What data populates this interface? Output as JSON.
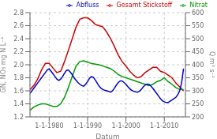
{
  "chart_data": {
    "type": "line",
    "title": "",
    "xlabel": "Datum",
    "ylabel": "GN, NO₃ mg N L⁻¹",
    "y2label": "Q m³ s⁻¹",
    "xlim": [
      1975.0,
      2015.5
    ],
    "xticks": [
      {
        "value": 1980,
        "label": "1-1-1980"
      },
      {
        "value": 1990,
        "label": "1-1-1990"
      },
      {
        "value": 2000,
        "label": "1-1-2000"
      },
      {
        "value": 2010,
        "label": "1-1-2010"
      }
    ],
    "ylim": [
      1.2,
      2.8
    ],
    "yticks": [
      1.2,
      1.4,
      1.6,
      1.8,
      {
        "value": 2.0,
        "label": "2.0"
      },
      2.2,
      2.4,
      2.6,
      2.8
    ],
    "y2lim": [
      200,
      600
    ],
    "y2ticks": [
      200,
      250,
      300,
      350,
      400,
      450,
      500,
      550,
      600
    ],
    "grid": true,
    "legend": "upper right",
    "series": [
      {
        "name": "Gesamt Stickstoff",
        "color": "#cc0000",
        "x": [
          1975,
          1976,
          1977,
          1978,
          1979,
          1980,
          1981,
          1982,
          1983,
          1984,
          1985,
          1986,
          1987,
          1988,
          1989,
          1990,
          1991,
          1992,
          1993,
          1994,
          1995,
          1996,
          1997,
          1998,
          1999,
          2000,
          2001,
          2002,
          2003,
          2004,
          2005,
          2006,
          2007,
          2008,
          2009,
          2010,
          2011,
          2012,
          2013,
          2014,
          2015
        ],
        "values": [
          1.62,
          1.68,
          1.78,
          1.92,
          2.02,
          2.02,
          1.95,
          1.88,
          1.9,
          2.05,
          2.22,
          2.4,
          2.58,
          2.7,
          2.72,
          2.72,
          2.68,
          2.62,
          2.6,
          2.58,
          2.5,
          2.4,
          2.28,
          2.15,
          2.05,
          1.98,
          1.9,
          1.84,
          1.8,
          1.82,
          1.88,
          1.92,
          1.96,
          1.96,
          1.9,
          1.88,
          1.84,
          1.8,
          1.72,
          1.66,
          1.6
        ]
      },
      {
        "name": "Nitrat",
        "color": "#009900",
        "x": [
          1975,
          1976,
          1977,
          1978,
          1979,
          1980,
          1981,
          1982,
          1983,
          1984,
          1985,
          1986,
          1987,
          1988,
          1989,
          1990,
          1991,
          1992,
          1993,
          1994,
          1995,
          1996,
          1997,
          1998,
          1999,
          2000,
          2001,
          2002,
          2003,
          2004,
          2005,
          2006,
          2007,
          2008,
          2009,
          2010,
          2011,
          2012,
          2013,
          2014,
          2015
        ],
        "values": [
          1.3,
          1.35,
          1.38,
          1.4,
          1.4,
          1.38,
          1.36,
          1.36,
          1.4,
          1.5,
          1.65,
          1.82,
          1.98,
          2.05,
          2.06,
          2.04,
          2.02,
          2.01,
          2.0,
          1.98,
          1.96,
          1.94,
          1.9,
          1.85,
          1.82,
          1.8,
          1.78,
          1.76,
          1.74,
          1.72,
          1.7,
          1.68,
          1.7,
          1.74,
          1.76,
          1.8,
          1.74,
          1.7,
          1.65,
          1.62,
          1.62
        ]
      },
      {
        "name": "Abfluss",
        "color": "#0000cc",
        "axis": "y2",
        "x": [
          1975,
          1976,
          1977,
          1978,
          1979,
          1979.5,
          1980,
          1980.5,
          1981,
          1981.5,
          1982,
          1982.5,
          1983,
          1983.5,
          1984,
          1984.5,
          1985,
          1985.5,
          1986,
          1986.5,
          1987,
          1987.5,
          1988,
          1988.5,
          1989,
          1989.5,
          1990,
          1990.5,
          1991,
          1991.5,
          1992,
          1992.5,
          1993,
          1993.5,
          1994,
          1994.5,
          1995,
          1995.5,
          1996,
          1996.5,
          1997,
          1997.5,
          1998,
          1998.5,
          1999,
          1999.5,
          2000,
          2000.5,
          2001,
          2001.5,
          2002,
          2002.5,
          2003,
          2003.5,
          2004,
          2004.5,
          2005,
          2005.5,
          2006,
          2006.5,
          2007,
          2007.5,
          2008,
          2008.5,
          2009,
          2009.5,
          2010,
          2010.5,
          2011,
          2011.5,
          2012,
          2012.5,
          2013,
          2013.5,
          2014,
          2014.5,
          2015
        ],
        "values": [
          290,
          310,
          330,
          350,
          370,
          380,
          385,
          375,
          365,
          355,
          345,
          340,
          345,
          355,
          368,
          378,
          380,
          372,
          362,
          350,
          340,
          332,
          325,
          320,
          318,
          325,
          335,
          348,
          355,
          352,
          342,
          330,
          318,
          310,
          305,
          302,
          300,
          298,
          295,
          300,
          310,
          322,
          332,
          338,
          338,
          332,
          325,
          316,
          308,
          302,
          298,
          296,
          295,
          298,
          305,
          315,
          322,
          326,
          325,
          318,
          310,
          300,
          290,
          280,
          270,
          262,
          258,
          255,
          255,
          260,
          265,
          270,
          275,
          285,
          300,
          330,
          385
        ]
      }
    ]
  }
}
